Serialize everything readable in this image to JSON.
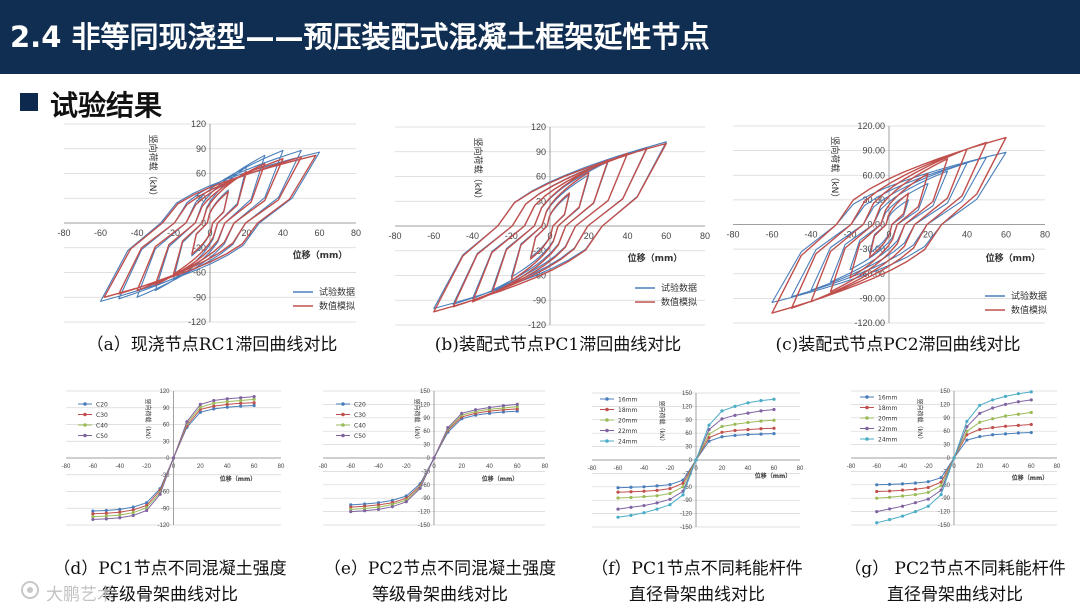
{
  "header": {
    "title": "2.4 非等同现浇型——预压装配式混凝土框架延性节点"
  },
  "section": {
    "label": "试验结果"
  },
  "colors": {
    "header_bg": "#102d52",
    "test": "#4a7ebb",
    "sim": "#c0504d"
  },
  "watermark": "大鹏艺术",
  "captions": {
    "a": "（a）现浇节点RC1滞回曲线对比",
    "b": "(b)装配式节点PC1滞回曲线对比",
    "c": "(c)装配式节点PC2滞回曲线对比",
    "d1": "（d）PC1节点不同混凝土强度",
    "d2": "等级骨架曲线对比",
    "e1": "（e）PC2节点不同混凝土强度",
    "e2": "等级骨架曲线对比",
    "f1": "（f）PC1节点不同耗能杆件",
    "f2": "直径骨架曲线对比",
    "g1": "（g） PC2节点不同耗能杆件",
    "g2": "直径骨架曲线对比"
  },
  "chart_data": [
    {
      "id": "a",
      "type": "line",
      "ylabel": "竖向荷载（kN）",
      "xlabel": "位移（mm）",
      "xticks": [
        "-80",
        "-60",
        "-40",
        "-20",
        "0",
        "20",
        "40",
        "60",
        "80"
      ],
      "yticks": [
        "120",
        "90",
        "60",
        "30",
        "0",
        "-30",
        "-60",
        "-90",
        "-120"
      ],
      "xlim": [
        -80,
        80
      ],
      "ylim": [
        -120,
        120
      ],
      "grid": true,
      "legend": [
        "试验数据",
        "数值模拟"
      ],
      "series": [
        {
          "name": "试验数据",
          "amplitudes": [
            10,
            20,
            30,
            40,
            50,
            60
          ],
          "peak_pos": [
            40,
            68,
            82,
            88,
            88,
            86
          ],
          "peak_neg": [
            -40,
            -68,
            -82,
            -90,
            -92,
            -95
          ]
        },
        {
          "name": "数值模拟",
          "amplitudes": [
            10,
            20,
            30,
            40,
            50,
            58
          ],
          "peak_pos": [
            38,
            62,
            72,
            78,
            80,
            82
          ],
          "peak_neg": [
            -38,
            -62,
            -75,
            -82,
            -86,
            -90
          ]
        }
      ]
    },
    {
      "id": "b",
      "type": "line",
      "ylabel": "竖向荷载（kN）",
      "xlabel": "位移（mm）",
      "xticks": [
        "-80",
        "-60",
        "-40",
        "-20",
        "0",
        "20",
        "40",
        "60",
        "80"
      ],
      "yticks": [
        "120",
        "90",
        "60",
        "30",
        "0",
        "-30",
        "-60",
        "-90",
        "-120"
      ],
      "xlim": [
        -80,
        80
      ],
      "ylim": [
        -120,
        120
      ],
      "grid": true,
      "legend": [
        "试验数据",
        "数值模拟"
      ],
      "series": [
        {
          "name": "试验数据",
          "amplitudes": [
            10,
            20,
            30,
            40,
            50,
            60
          ],
          "peak_pos": [
            38,
            62,
            78,
            88,
            95,
            102
          ],
          "peak_neg": [
            -38,
            -62,
            -78,
            -88,
            -95,
            -100
          ]
        },
        {
          "name": "数值模拟",
          "amplitudes": [
            10,
            20,
            30,
            40,
            50,
            60
          ],
          "peak_pos": [
            40,
            65,
            80,
            88,
            94,
            100
          ],
          "peak_neg": [
            -40,
            -66,
            -82,
            -92,
            -98,
            -104
          ]
        }
      ]
    },
    {
      "id": "c",
      "type": "line",
      "ylabel": "竖向荷载（kN）",
      "xlabel": "位移（mm）",
      "xticks": [
        "-80",
        "-60",
        "-40",
        "-20",
        "0",
        "20",
        "40",
        "60",
        "80"
      ],
      "yticks": [
        "120.00",
        "90.00",
        "60.00",
        "30.00",
        "0.00",
        "-30.00",
        "-60.00",
        "-90.00",
        "-120.00"
      ],
      "xlim": [
        -80,
        80
      ],
      "ylim": [
        -120,
        120
      ],
      "grid": true,
      "legend": [
        "试验数据",
        "数值模拟"
      ],
      "series": [
        {
          "name": "试验数据",
          "amplitudes": [
            10,
            20,
            30,
            40,
            50,
            60
          ],
          "peak_pos": [
            30,
            50,
            65,
            75,
            82,
            88
          ],
          "peak_neg": [
            -35,
            -55,
            -70,
            -80,
            -88,
            -95
          ]
        },
        {
          "name": "数值模拟",
          "amplitudes": [
            10,
            20,
            30,
            40,
            50,
            60
          ],
          "peak_pos": [
            38,
            62,
            80,
            92,
            100,
            106
          ],
          "peak_neg": [
            -40,
            -65,
            -82,
            -94,
            -102,
            -108
          ]
        }
      ]
    },
    {
      "id": "d",
      "type": "line",
      "ylabel": "竖向荷载（kN）",
      "xlabel": "位移（mm）",
      "xticks": [
        "-80",
        "-60",
        "-40",
        "-20",
        "0",
        "20",
        "40",
        "60",
        "80"
      ],
      "yticks": [
        "120",
        "90",
        "60",
        "30",
        "0",
        "-30",
        "-60",
        "-90",
        "-120"
      ],
      "xlim": [
        -80,
        80
      ],
      "ylim": [
        -120,
        120
      ],
      "grid": true,
      "x": [
        -60,
        -50,
        -40,
        -30,
        -20,
        -10,
        0,
        10,
        20,
        30,
        40,
        50,
        60
      ],
      "series": [
        {
          "name": "C20",
          "values": [
            -95,
            -94,
            -92,
            -88,
            -80,
            -55,
            0,
            55,
            82,
            88,
            91,
            93,
            94
          ]
        },
        {
          "name": "C30",
          "values": [
            -100,
            -99,
            -97,
            -93,
            -85,
            -58,
            0,
            58,
            87,
            93,
            96,
            98,
            99
          ]
        },
        {
          "name": "C40",
          "values": [
            -105,
            -104,
            -102,
            -98,
            -89,
            -62,
            0,
            62,
            91,
            98,
            101,
            103,
            105
          ]
        },
        {
          "name": "C50",
          "values": [
            -110,
            -109,
            -107,
            -103,
            -94,
            -65,
            0,
            65,
            96,
            103,
            106,
            108,
            110
          ]
        }
      ]
    },
    {
      "id": "e",
      "type": "line",
      "ylabel": "竖向荷载（kN）",
      "xlabel": "位移（mm）",
      "xticks": [
        "-80",
        "-60",
        "-40",
        "-20",
        "0",
        "20",
        "40",
        "60",
        "80"
      ],
      "yticks": [
        "150",
        "120",
        "90",
        "60",
        "30",
        "0",
        "-30",
        "-60",
        "-90",
        "-120",
        "-150"
      ],
      "xlim": [
        -80,
        80
      ],
      "ylim": [
        -150,
        150
      ],
      "grid": true,
      "x": [
        -60,
        -50,
        -40,
        -30,
        -20,
        -10,
        0,
        10,
        20,
        30,
        40,
        50,
        60
      ],
      "series": [
        {
          "name": "C20",
          "values": [
            -105,
            -103,
            -100,
            -95,
            -85,
            -58,
            0,
            58,
            88,
            96,
            100,
            103,
            105
          ]
        },
        {
          "name": "C30",
          "values": [
            -110,
            -108,
            -105,
            -100,
            -90,
            -62,
            0,
            62,
            92,
            100,
            105,
            108,
            110
          ]
        },
        {
          "name": "C40",
          "values": [
            -115,
            -113,
            -110,
            -104,
            -94,
            -65,
            0,
            65,
            96,
            104,
            109,
            112,
            115
          ]
        },
        {
          "name": "C50",
          "values": [
            -120,
            -118,
            -115,
            -109,
            -98,
            -68,
            0,
            68,
            100,
            108,
            113,
            117,
            120
          ]
        }
      ]
    },
    {
      "id": "f",
      "type": "line",
      "ylabel": "竖向荷载（kN）",
      "xlabel": "位移（mm）",
      "xticks": [
        "-80",
        "-60",
        "-40",
        "-20",
        "0",
        "20",
        "40",
        "60",
        "80"
      ],
      "yticks": [
        "150",
        "120",
        "90",
        "60",
        "30",
        "0",
        "-30",
        "-60",
        "-90",
        "-120",
        "-150"
      ],
      "xlim": [
        -80,
        80
      ],
      "ylim": [
        -150,
        150
      ],
      "grid": true,
      "x": [
        -60,
        -50,
        -40,
        -30,
        -20,
        -10,
        0,
        10,
        20,
        30,
        40,
        50,
        60
      ],
      "series": [
        {
          "name": "16mm",
          "values": [
            -62,
            -61,
            -60,
            -58,
            -55,
            -45,
            0,
            42,
            52,
            55,
            57,
            58,
            59
          ]
        },
        {
          "name": "18mm",
          "values": [
            -72,
            -71,
            -70,
            -68,
            -64,
            -52,
            0,
            50,
            62,
            66,
            68,
            70,
            71
          ]
        },
        {
          "name": "20mm",
          "values": [
            -85,
            -84,
            -82,
            -80,
            -75,
            -60,
            0,
            58,
            75,
            80,
            84,
            87,
            89
          ]
        },
        {
          "name": "22mm",
          "values": [
            -110,
            -106,
            -102,
            -96,
            -88,
            -70,
            0,
            68,
            92,
            100,
            105,
            110,
            113
          ]
        },
        {
          "name": "24mm",
          "values": [
            -128,
            -124,
            -118,
            -110,
            -100,
            -78,
            0,
            78,
            110,
            120,
            128,
            133,
            136
          ]
        }
      ]
    },
    {
      "id": "g",
      "type": "line",
      "ylabel": "竖向荷载（kN）",
      "xlabel": "位移（mm）",
      "xticks": [
        "-80",
        "-60",
        "-40",
        "-20",
        "0",
        "20",
        "40",
        "60",
        "80"
      ],
      "yticks": [
        "150",
        "120",
        "90",
        "60",
        "30",
        "0",
        "-30",
        "-60",
        "-90",
        "-120",
        "-150"
      ],
      "xlim": [
        -80,
        80
      ],
      "ylim": [
        -150,
        150
      ],
      "grid": true,
      "x": [
        -60,
        -50,
        -40,
        -30,
        -20,
        -10,
        0,
        10,
        20,
        30,
        40,
        50,
        60
      ],
      "series": [
        {
          "name": "16mm",
          "values": [
            -60,
            -59,
            -58,
            -56,
            -53,
            -44,
            0,
            40,
            48,
            52,
            54,
            56,
            57
          ]
        },
        {
          "name": "18mm",
          "values": [
            -75,
            -74,
            -72,
            -70,
            -66,
            -54,
            0,
            52,
            64,
            68,
            71,
            73,
            75
          ]
        },
        {
          "name": "20mm",
          "values": [
            -90,
            -88,
            -85,
            -82,
            -77,
            -62,
            0,
            60,
            80,
            88,
            94,
            98,
            102
          ]
        },
        {
          "name": "22mm",
          "values": [
            -120,
            -114,
            -108,
            -100,
            -92,
            -72,
            0,
            70,
            100,
            112,
            120,
            126,
            130
          ]
        },
        {
          "name": "24mm",
          "values": [
            -145,
            -138,
            -130,
            -120,
            -108,
            -82,
            0,
            82,
            118,
            130,
            138,
            144,
            148
          ]
        }
      ]
    }
  ]
}
